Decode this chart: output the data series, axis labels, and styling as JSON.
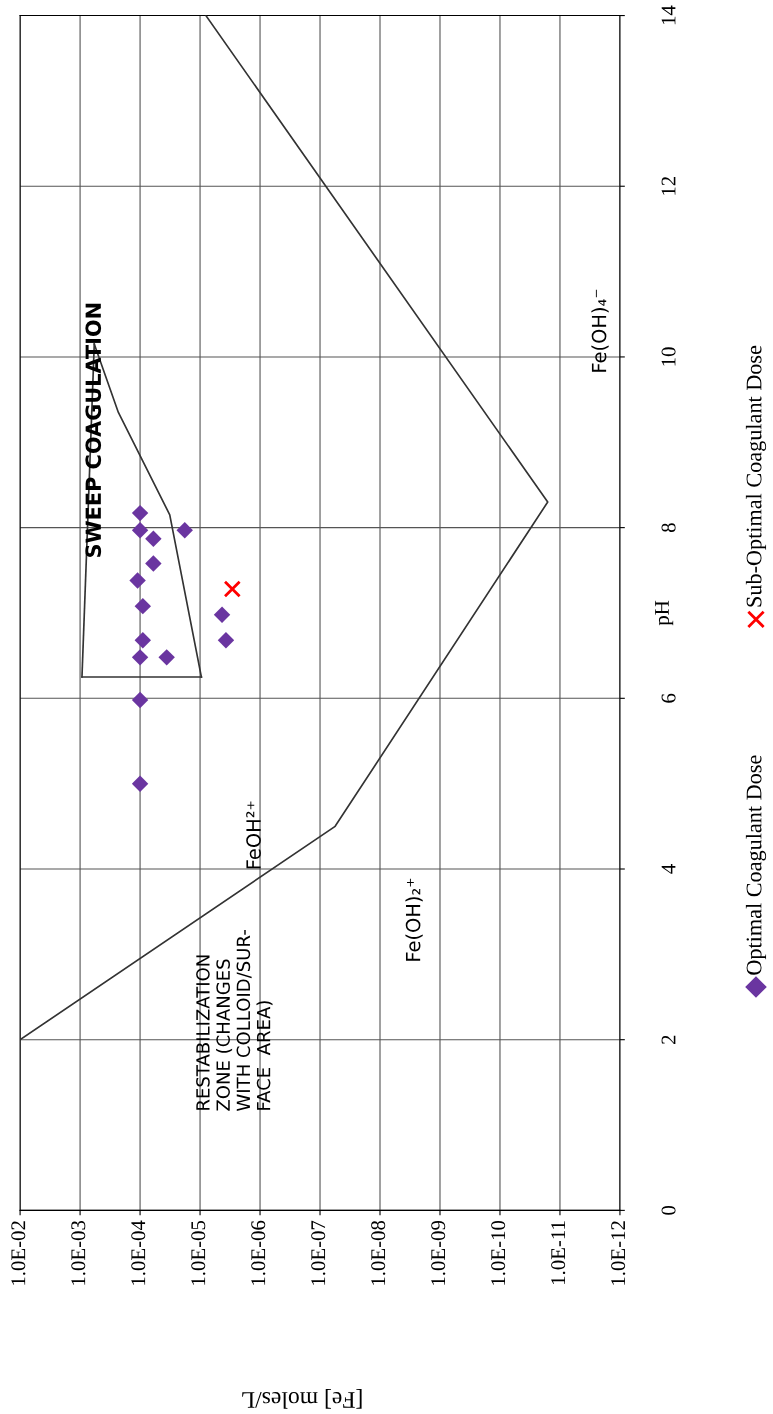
{
  "chart_data": {
    "type": "scatter",
    "xlabel": "[Fe] moles/L",
    "ylabel": "pH",
    "ylim": [
      0,
      14
    ],
    "yticks": [
      0,
      2,
      4,
      6,
      8,
      10,
      12,
      14
    ],
    "xlim": [
      0.01,
      1e-12
    ],
    "log": "x",
    "xticks": [
      {
        "value": 0.01,
        "label": "1.0E-02"
      },
      {
        "value": 0.001,
        "label": "1.0E-03"
      },
      {
        "value": 0.0001,
        "label": "1.0E-04"
      },
      {
        "value": 1e-05,
        "label": "1.0E-05"
      },
      {
        "value": 1e-06,
        "label": "1.0E-06"
      },
      {
        "value": 1e-07,
        "label": "1.0E-07"
      },
      {
        "value": 1e-08,
        "label": "1.0E-08"
      },
      {
        "value": 1e-09,
        "label": "1.0E-09"
      },
      {
        "value": 1e-10,
        "label": "1.0E-10"
      },
      {
        "value": 1e-11,
        "label": "1.0E-11"
      },
      {
        "value": 1e-12,
        "label": "1.0E-12"
      }
    ],
    "grid": true,
    "legend": "right",
    "series": [
      {
        "type": "line",
        "color": "#333333",
        "line_style": "solid",
        "values": [
          2.0,
          4.5,
          8.3,
          14.0
        ],
        "x": [
          0.01,
          5.6e-08,
          1.6e-11,
          8e-06
        ]
      },
      {
        "type": "line",
        "color": "#333333",
        "line_style": "solid",
        "values": [
          6.25,
          6.25
        ],
        "x": [
          0.00093,
          9.5e-06
        ]
      },
      {
        "type": "line",
        "color": "#333333",
        "line_style": "solid",
        "values": [
          6.25,
          8.15,
          9.35,
          10.15
        ],
        "x": [
          9.5e-06,
          3.2e-05,
          0.00023,
          0.00058
        ]
      },
      {
        "type": "line",
        "color": "#333333",
        "line_style": "solid",
        "values": [
          10.15,
          6.25
        ],
        "x": [
          0.00058,
          0.00093
        ]
      },
      {
        "name": "Optimal Coagulant Dose",
        "marker": "diamond",
        "color": "#6a35a0",
        "values": [
          8.17,
          7.97,
          7.97,
          7.87,
          7.58,
          7.38,
          7.08,
          6.98,
          6.68,
          6.68,
          6.48,
          6.48,
          5.98,
          5.0
        ],
        "x": [
          0.0001,
          0.0001,
          1.8e-05,
          6e-05,
          6e-05,
          0.00011,
          9e-05,
          4.3e-06,
          9e-05,
          3.7e-06,
          0.0001,
          3.6e-05,
          0.0001,
          0.0001
        ]
      },
      {
        "name": "Sub-Optimal Coagulant Dose",
        "marker": "cross",
        "color": "#ff0000",
        "values": [
          7.28
        ],
        "x": [
          2.9e-06
        ]
      }
    ],
    "annotations": [
      "SWEEP COAGULATION",
      "RESTABILIZATION\nZONE (CHANGES\nWITH COLLOID/SUR-\nFACE  AREA)",
      "FeOH²⁺",
      "Fe(OH)₂⁺",
      "Fe(OH)₄⁻"
    ]
  }
}
